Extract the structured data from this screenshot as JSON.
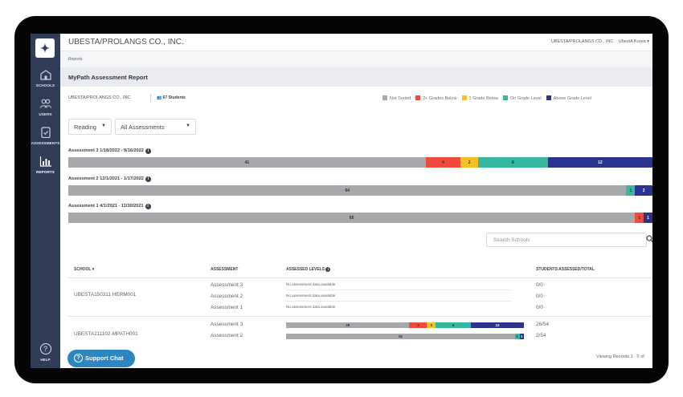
{
  "sidebar": {
    "items": [
      {
        "label": "SCHOOLS",
        "icon": "school-icon"
      },
      {
        "label": "USERS",
        "icon": "users-icon"
      },
      {
        "label": "ASSESSMENTS",
        "icon": "clipboard-icon"
      },
      {
        "label": "REPORTS",
        "icon": "chart-icon"
      }
    ],
    "help_label": "HELP",
    "help_glyph": "?"
  },
  "header": {
    "org_name": "UBESTA/PROLANGS CO., INC.",
    "right_text": "UBESTA/PROLANGS CO., INC.  ·  UbestA Korea",
    "right_chevron": "▾"
  },
  "breadcrumb": "Reports",
  "page_title": "MyPath Assessment Report",
  "summary": {
    "school": "UBESTA/PROLANGS CO., INC.",
    "students": "67 Students"
  },
  "legend": [
    {
      "label": "Not Tested",
      "color": "#a6a8ab"
    },
    {
      "label": "2+ Grades Below",
      "color": "#f04a3a"
    },
    {
      "label": "1 Grade Below",
      "color": "#f5c021"
    },
    {
      "label": "On Grade Level",
      "color": "#36b8a0"
    },
    {
      "label": "Above Grade Level",
      "color": "#2b3590"
    }
  ],
  "filters": {
    "subject": "Reading",
    "assessment": "All Assessments"
  },
  "assessments": [
    {
      "label": "Assessment 3 1/18/2022 - 9/16/2022",
      "counts": [
        41,
        4,
        2,
        8,
        12
      ]
    },
    {
      "label": "Assessment 2 12/1/2021 - 1/17/2022",
      "counts": [
        64,
        0,
        0,
        1,
        2
      ]
    },
    {
      "label": "Assessment 1 4/1/2021 - 11/30/2021",
      "counts": [
        65,
        1,
        0,
        0,
        1
      ]
    }
  ],
  "search": {
    "placeholder": "Search Schools"
  },
  "table": {
    "headers": {
      "school": "SCHOOL",
      "sort": "▾",
      "assessment": "ASSESSMENT",
      "levels": "ASSESSED LEVELS",
      "students": "STUDENTS ASSESSED/TOTAL"
    },
    "no_data": "No assessment data available",
    "rows": [
      {
        "school": "UBESTA150311 HERM001",
        "assessments": [
          {
            "name": "Assessment 3",
            "total": "0/0"
          },
          {
            "name": "Assessment 2",
            "total": "0/0"
          },
          {
            "name": "Assessment 1",
            "total": "0/0"
          }
        ]
      },
      {
        "school": "UBESTA211102-MPATH001",
        "assessments": [
          {
            "name": "Assessment 3",
            "counts": [
              28,
              4,
              2,
              8,
              12
            ],
            "total": "26/54"
          },
          {
            "name": "Assessment 2",
            "counts": [
              52,
              0,
              0,
              1,
              1
            ],
            "total": "2/54"
          }
        ]
      }
    ]
  },
  "support_chat": "Support Chat",
  "viewing": "Viewing Records 1 - 2 of"
}
